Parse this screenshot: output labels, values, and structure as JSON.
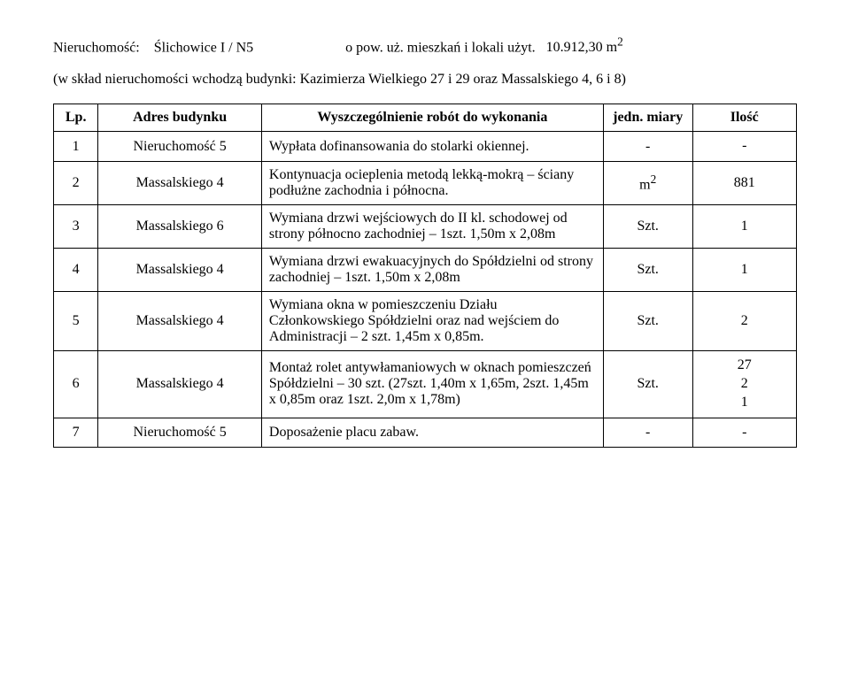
{
  "header": {
    "label_nieruchomosc": "Nieruchomość:",
    "property_name": "Ślichowice I / N5",
    "area_label": "o pow. uż. mieszkań i lokali użyt.",
    "area_value": "10.912,30 m",
    "area_exp": "2"
  },
  "subtitle": "(w skład nieruchomości wchodzą budynki: Kazimierza Wielkiego 27 i 29 oraz Massalskiego 4, 6 i 8)",
  "table": {
    "headers": {
      "lp": "Lp.",
      "address": "Adres budynku",
      "desc": "Wyszczególnienie robót do wykonania",
      "unit": "jedn. miary",
      "qty": "Ilość"
    },
    "rows": [
      {
        "lp": "1",
        "address": "Nieruchomość 5",
        "desc": "Wypłata dofinansowania do stolarki okiennej.",
        "unit": "-",
        "qty": "-"
      },
      {
        "lp": "2",
        "address": "Massalskiego 4",
        "desc": "Kontynuacja ocieplenia metodą lekką-mokrą – ściany podłużne zachodnia i północna.",
        "unit_html": "m<sup>2</sup>",
        "qty": "881"
      },
      {
        "lp": "3",
        "address": "Massalskiego 6",
        "desc": "Wymiana drzwi wejściowych do II kl. schodowej od strony północno zachodniej – 1szt. 1,50m x 2,08m",
        "unit": "Szt.",
        "qty": "1"
      },
      {
        "lp": "4",
        "address": "Massalskiego 4",
        "desc": "Wymiana drzwi ewakuacyjnych do Spółdzielni od strony zachodniej – 1szt. 1,50m x 2,08m",
        "unit": "Szt.",
        "qty": "1"
      },
      {
        "lp": "5",
        "address": "Massalskiego 4",
        "desc": "Wymiana okna w pomieszczeniu Działu Członkowskiego Spółdzielni oraz nad wejściem do Administracji – 2 szt. 1,45m x 0,85m.",
        "unit": "Szt.",
        "qty": "2"
      },
      {
        "lp": "6",
        "address": "Massalskiego 4",
        "desc": "Montaż rolet antywłamaniowych w oknach pomieszczeń Spółdzielni – 30 szt. (27szt. 1,40m x 1,65m, 2szt. 1,45m x 0,85m oraz 1szt. 2,0m x 1,78m)",
        "unit": "Szt.",
        "qty_lines": [
          "27",
          "2",
          "1"
        ]
      },
      {
        "lp": "7",
        "address": "Nieruchomość 5",
        "desc": "Doposażenie placu zabaw.",
        "unit": "-",
        "qty": "-"
      }
    ]
  }
}
